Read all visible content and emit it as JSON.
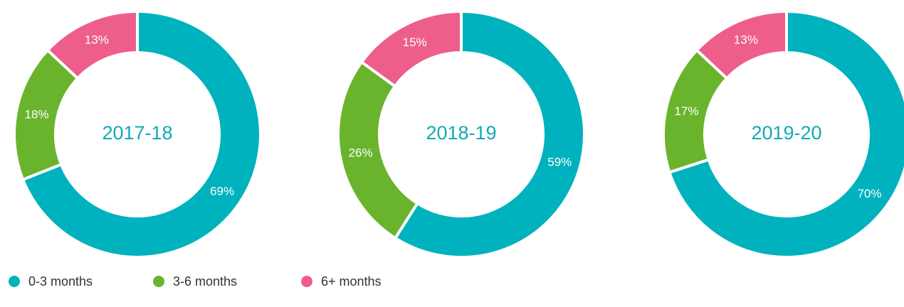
{
  "chart_data": [
    {
      "type": "donut",
      "title": "2017-18",
      "categories": [
        "0-3 months",
        "3-6 months",
        "6+ months"
      ],
      "values": [
        69,
        18,
        13
      ],
      "value_labels": [
        "69%",
        "18%",
        "13%"
      ],
      "colors": [
        "#00b2bd",
        "#6ab42d",
        "#ee5e8a"
      ]
    },
    {
      "type": "donut",
      "title": "2018-19",
      "categories": [
        "0-3 months",
        "3-6 months",
        "6+ months"
      ],
      "values": [
        59,
        26,
        15
      ],
      "value_labels": [
        "59%",
        "26%",
        "15%"
      ],
      "colors": [
        "#00b2bd",
        "#6ab42d",
        "#ee5e8a"
      ]
    },
    {
      "type": "donut",
      "title": "2019-20",
      "categories": [
        "0-3 months",
        "3-6 months",
        "6+ months"
      ],
      "values": [
        70,
        17,
        13
      ],
      "value_labels": [
        "70%",
        "17%",
        "13%"
      ],
      "colors": [
        "#00b2bd",
        "#6ab42d",
        "#ee5e8a"
      ]
    }
  ]
}
